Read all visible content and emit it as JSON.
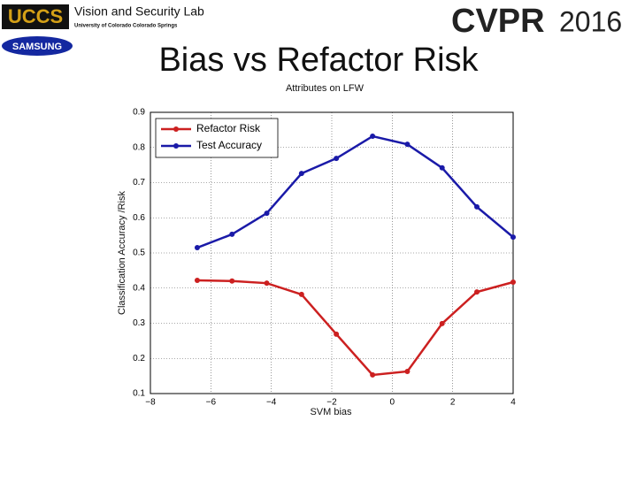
{
  "header": {
    "lab_logo": "UCCS",
    "lab_name": "Vision and Security Lab",
    "university": "University of Colorado Colorado Springs",
    "sponsor": "SAMSUNG",
    "conference": "CVPR",
    "year": "2016"
  },
  "slide_title": "Bias vs Refactor Risk",
  "chart_data": {
    "type": "line",
    "title": "Attributes on LFW",
    "xlabel": "SVM bias",
    "ylabel": "Classification Accuracy /Risk",
    "x": [
      -6.45,
      -5.3,
      -4.15,
      -3.0,
      -1.85,
      -0.65,
      0.5,
      1.65,
      2.8,
      4.0
    ],
    "series": [
      {
        "name": "Refactor Risk",
        "color": "#cc2020",
        "values": [
          0.422,
          0.42,
          0.414,
          0.382,
          0.269,
          0.153,
          0.163,
          0.299,
          0.389,
          0.417
        ]
      },
      {
        "name": "Test Accuracy",
        "color": "#1a1aa8",
        "values": [
          0.515,
          0.553,
          0.613,
          0.726,
          0.769,
          0.832,
          0.809,
          0.742,
          0.631,
          0.545
        ]
      }
    ],
    "xlim": [
      -8,
      4
    ],
    "xticks": [
      {
        "value": -8,
        "label": "−8"
      },
      {
        "value": -6,
        "label": "−6"
      },
      {
        "value": -4,
        "label": "−4"
      },
      {
        "value": -2,
        "label": "−2"
      },
      0,
      2,
      4
    ],
    "ylim": [
      0.1,
      0.9
    ],
    "yticks": [
      0.1,
      0.2,
      0.3,
      0.4,
      0.5,
      0.6,
      0.7,
      0.8,
      0.9
    ],
    "grid": true,
    "legend": "upper left"
  }
}
